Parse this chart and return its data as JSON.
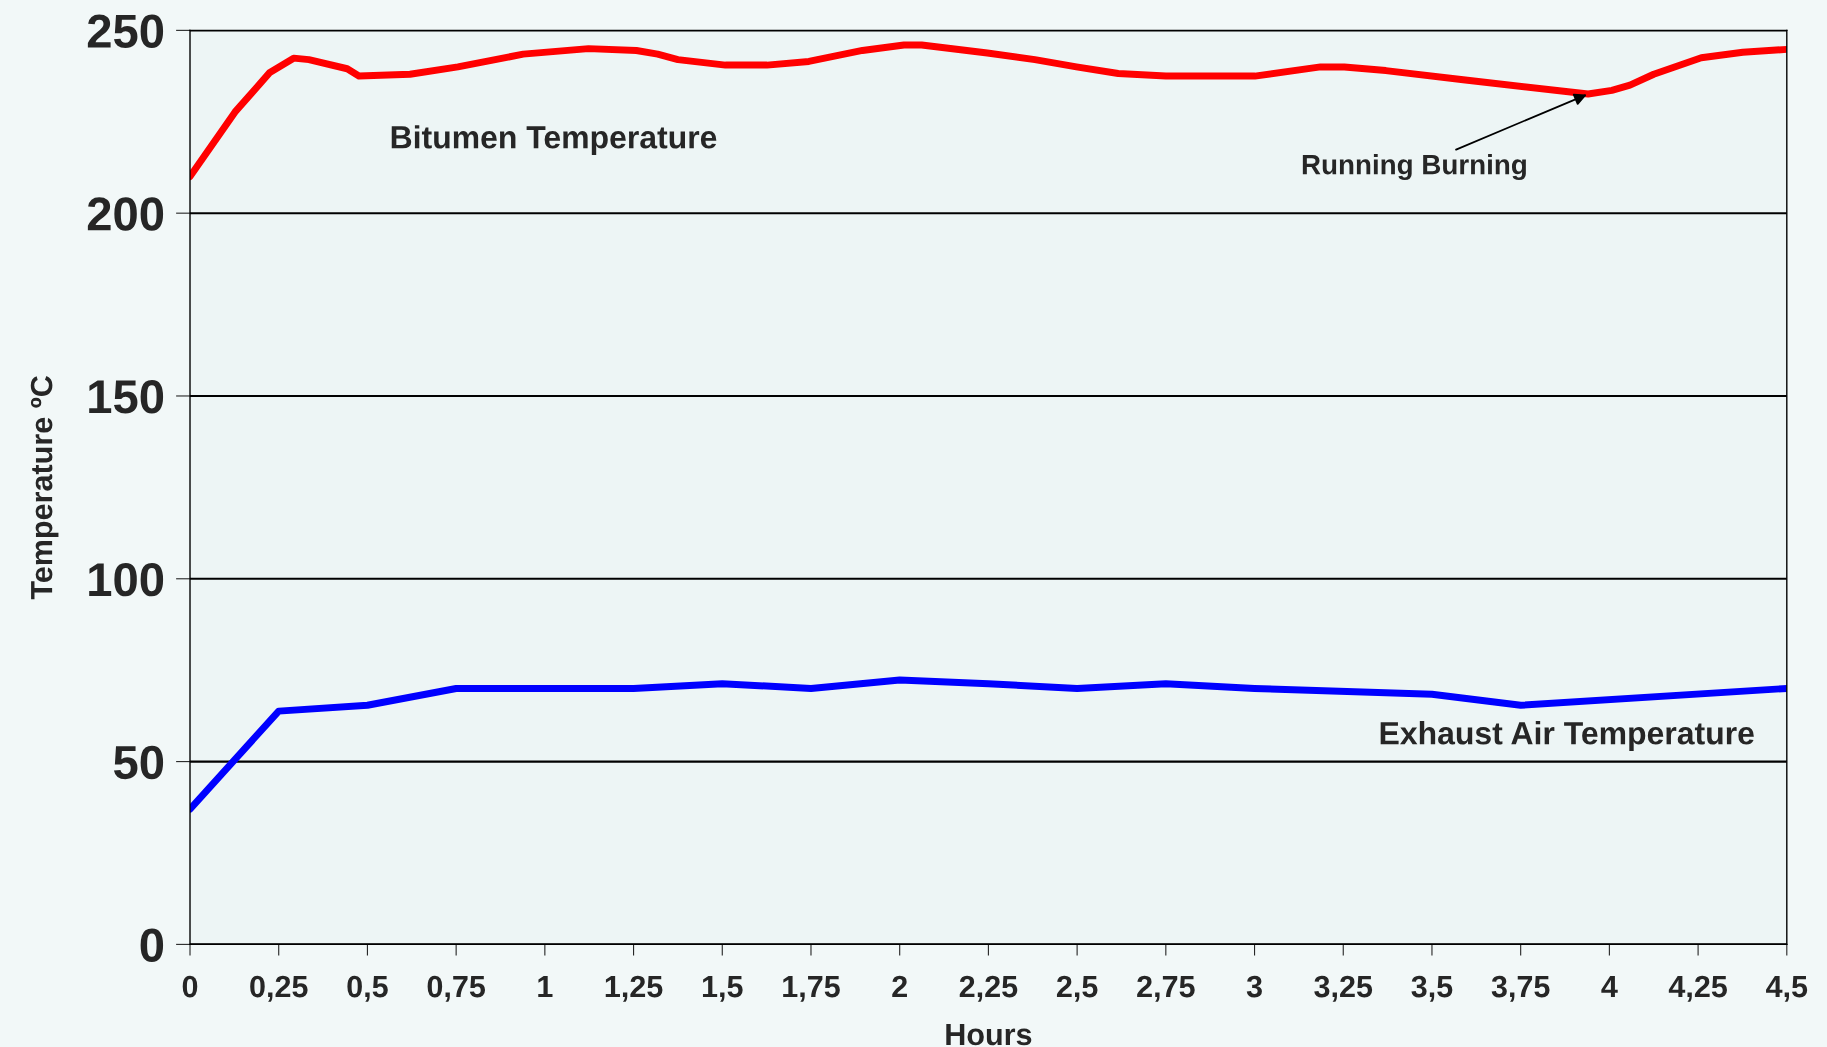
{
  "chart_data": {
    "type": "line",
    "xlabel": "Hours",
    "ylabel": "Temperature ºC",
    "series": [
      {
        "name": "Bitumen Temperature",
        "color": "#ff0000",
        "x": [
          0,
          0.127,
          0.225,
          0.292,
          0.335,
          0.443,
          0.476,
          0.62,
          0.755,
          0.939,
          1.123,
          1.258,
          1.318,
          1.375,
          1.509,
          1.626,
          1.744,
          1.895,
          2.012,
          2.062,
          2.247,
          2.381,
          2.498,
          2.616,
          2.75,
          3.001,
          3.186,
          3.253,
          3.37,
          3.588,
          3.94,
          4.007,
          4.058,
          4.125,
          4.259,
          4.376,
          4.5
        ],
        "values": [
          210,
          227.7,
          238.5,
          242.4,
          242,
          239.5,
          237.5,
          238,
          240,
          243.5,
          245,
          244.5,
          243.5,
          242,
          240.5,
          240.5,
          241.5,
          244.5,
          246,
          246,
          243.8,
          242,
          240,
          238.2,
          237.5,
          237.5,
          240,
          240,
          239,
          236.5,
          232.6,
          233.6,
          235,
          238,
          242.5,
          244,
          244.8
        ]
      },
      {
        "name": "Exhaust Air Temperature",
        "color": "#0000ff",
        "x": [
          0,
          0.25,
          0.5,
          0.75,
          1.25,
          1.5,
          1.75,
          2,
          2.25,
          2.5,
          2.75,
          3,
          3.5,
          3.75,
          4.5
        ],
        "values": [
          37,
          63.8,
          65.4,
          70,
          70,
          71.3,
          70,
          72.3,
          71.3,
          70,
          71.3,
          70,
          68.4,
          65.4,
          70
        ]
      }
    ],
    "annotations": [
      {
        "text": "Running Burning",
        "x": 3.94,
        "y": 232.6
      }
    ],
    "xlim": [
      0,
      4.5
    ],
    "ylim": [
      0,
      250
    ],
    "xticks": [
      0,
      {
        "value": 0.25,
        "label": "0,25"
      },
      {
        "value": 0.5,
        "label": "0,5"
      },
      {
        "value": 0.75,
        "label": "0,75"
      },
      1,
      {
        "value": 1.25,
        "label": "1,25"
      },
      {
        "value": 1.5,
        "label": "1,5"
      },
      {
        "value": 1.75,
        "label": "1,75"
      },
      2,
      {
        "value": 2.25,
        "label": "2,25"
      },
      {
        "value": 2.5,
        "label": "2,5"
      },
      {
        "value": 2.75,
        "label": "2,75"
      },
      3,
      {
        "value": 3.25,
        "label": "3,25"
      },
      {
        "value": 3.5,
        "label": "3,5"
      },
      {
        "value": 3.75,
        "label": "3,75"
      },
      4,
      {
        "value": 4.25,
        "label": "4,25"
      },
      {
        "value": 4.5,
        "label": "4,5"
      }
    ],
    "yticks": [
      0,
      50,
      100,
      150,
      200,
      250
    ],
    "grid": "y",
    "legend": false,
    "marker": "none",
    "line_style": "solid"
  }
}
